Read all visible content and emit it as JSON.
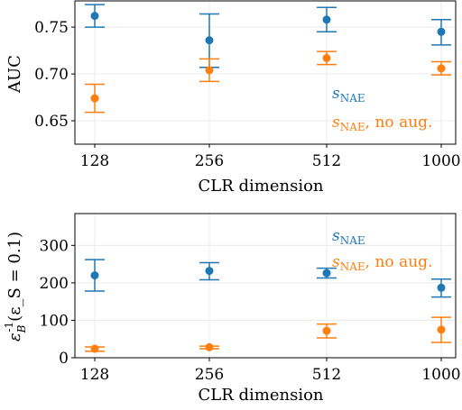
{
  "chart_data": [
    {
      "type": "scatter",
      "xlabel": "CLR dimension",
      "ylabel": "AUC",
      "categories": [
        "128",
        "256",
        "512",
        "1000"
      ],
      "ylim": [
        0.625,
        0.778
      ],
      "yticks": [
        0.65,
        0.7,
        0.75
      ],
      "ytick_labels": [
        "0.65",
        "0.70",
        "0.75"
      ],
      "grid": true,
      "legend_placement": "right",
      "series": [
        {
          "name_main": "s",
          "name_sub": "NAE",
          "name_suffix": "",
          "color": "#1f77b4",
          "values": [
            0.762,
            0.736,
            0.758,
            0.745
          ],
          "err_low": [
            0.75,
            0.707,
            0.745,
            0.731
          ],
          "err_high": [
            0.774,
            0.764,
            0.771,
            0.758
          ]
        },
        {
          "name_main": "s",
          "name_sub": "NAE",
          "name_suffix": ", no aug.",
          "color": "#ff7f0e",
          "values": [
            0.674,
            0.704,
            0.717,
            0.706
          ],
          "err_low": [
            0.659,
            0.692,
            0.71,
            0.699
          ],
          "err_high": [
            0.689,
            0.716,
            0.724,
            0.713
          ]
        }
      ]
    },
    {
      "type": "scatter",
      "xlabel": "CLR dimension",
      "ylabel": "ε_B^{-1}(ε_S = 0.1)",
      "categories": [
        "128",
        "256",
        "512",
        "1000"
      ],
      "ylim": [
        0,
        385
      ],
      "yticks": [
        0,
        100,
        200,
        300
      ],
      "ytick_labels": [
        "0",
        "100",
        "200",
        "300"
      ],
      "grid": true,
      "legend_placement": "top-right",
      "series": [
        {
          "name_main": "s",
          "name_sub": "NAE",
          "name_suffix": "",
          "color": "#1f77b4",
          "values": [
            220,
            232,
            226,
            187
          ],
          "err_low": [
            178,
            208,
            213,
            162
          ],
          "err_high": [
            262,
            254,
            239,
            210
          ]
        },
        {
          "name_main": "s",
          "name_sub": "NAE",
          "name_suffix": ", no aug.",
          "color": "#ff7f0e",
          "values": [
            24,
            28,
            72,
            75
          ],
          "err_low": [
            17,
            24,
            53,
            41
          ],
          "err_high": [
            29,
            31,
            90,
            108
          ]
        }
      ]
    }
  ]
}
